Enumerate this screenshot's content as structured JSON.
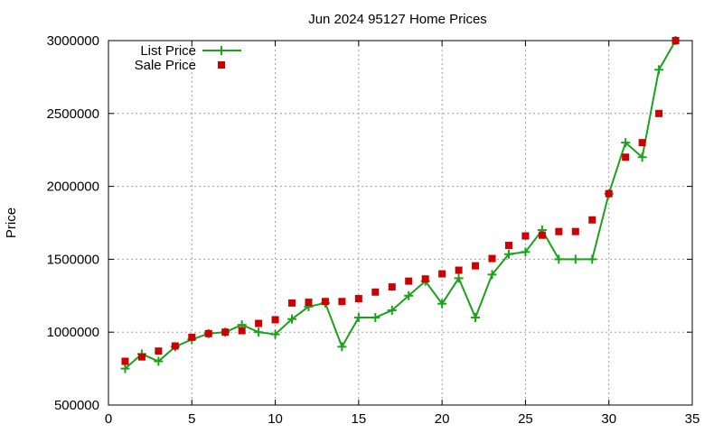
{
  "chart_data": {
    "type": "line",
    "title": "Jun 2024 95127 Home Prices",
    "xlabel": "",
    "ylabel": "Price",
    "xlim": [
      0,
      35
    ],
    "ylim": [
      500000,
      3000000
    ],
    "x_ticks": [
      0,
      5,
      10,
      15,
      20,
      25,
      30,
      35
    ],
    "y_ticks": [
      500000,
      1000000,
      1500000,
      2000000,
      2500000,
      3000000
    ],
    "x_tick_labels": [
      "0",
      "5",
      "10",
      "15",
      "20",
      "25",
      "30",
      "35"
    ],
    "y_tick_labels": [
      "500000",
      "1000000",
      "1500000",
      "2000000",
      "2500000",
      "3000000"
    ],
    "grid": true,
    "legend_position": "top-left",
    "series": [
      {
        "name": "List Price",
        "style": "line-plus",
        "color": "#1aa31a",
        "x": [
          1,
          2,
          3,
          4,
          5,
          6,
          7,
          8,
          9,
          10,
          11,
          12,
          13,
          14,
          15,
          16,
          17,
          18,
          19,
          20,
          21,
          22,
          23,
          24,
          25,
          26,
          27,
          28,
          29,
          30,
          31,
          32,
          33,
          34
        ],
        "values": [
          750000,
          850000,
          800000,
          900000,
          950000,
          990000,
          1000000,
          1050000,
          1000000,
          985000,
          1090000,
          1175000,
          1200000,
          900000,
          1100000,
          1100000,
          1150000,
          1250000,
          1350000,
          1195000,
          1370000,
          1100000,
          1395000,
          1535000,
          1550000,
          1700000,
          1500000,
          1500000,
          1500000,
          1950000,
          2300000,
          2200000,
          2800000,
          3000000
        ]
      },
      {
        "name": "Sale Price",
        "style": "square",
        "color": "#cc0000",
        "x": [
          1,
          2,
          3,
          4,
          5,
          6,
          7,
          8,
          9,
          10,
          11,
          12,
          13,
          14,
          15,
          16,
          17,
          18,
          19,
          20,
          21,
          22,
          23,
          24,
          25,
          26,
          27,
          28,
          29,
          30,
          31,
          32,
          33,
          34
        ],
        "values": [
          800000,
          830000,
          870000,
          905000,
          965000,
          990000,
          1000000,
          1010000,
          1060000,
          1085000,
          1200000,
          1205000,
          1210000,
          1210000,
          1230000,
          1275000,
          1310000,
          1350000,
          1365000,
          1400000,
          1425000,
          1455000,
          1505000,
          1595000,
          1660000,
          1665000,
          1690000,
          1690000,
          1770000,
          1950000,
          2200000,
          2300000,
          2500000,
          3000000
        ]
      }
    ]
  }
}
